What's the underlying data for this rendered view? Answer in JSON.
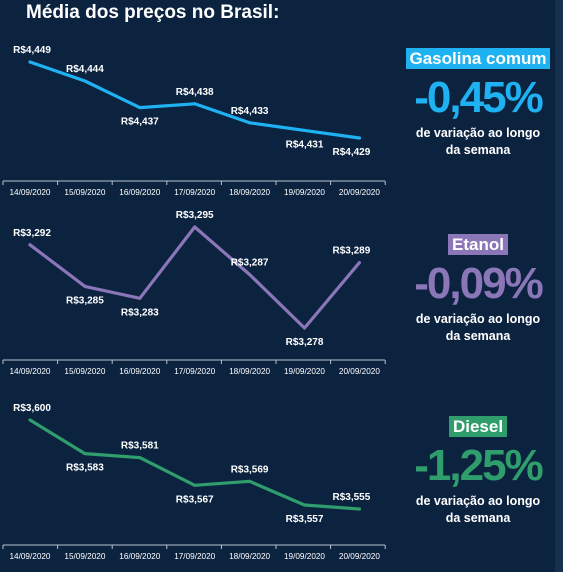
{
  "title": "Média dos preços no Brasil:",
  "description_line1": "de variação ao longo",
  "description_line2": "da semana",
  "chart_data": [
    {
      "type": "line",
      "name": "Gasolina comum",
      "color": "#1eb2f2",
      "change": "-0,45%",
      "x": [
        "14/09/2020",
        "15/09/2020",
        "16/09/2020",
        "17/09/2020",
        "18/09/2020",
        "19/09/2020",
        "20/09/2020"
      ],
      "values": [
        4.449,
        4.444,
        4.437,
        4.438,
        4.433,
        4.431,
        4.429
      ],
      "labels": [
        "R$4,449",
        "R$4,444",
        "R$4,437",
        "R$4,438",
        "R$4,433",
        "R$4,431",
        "R$4,429"
      ],
      "label_positions": [
        "above",
        "above",
        "below",
        "above",
        "above",
        "below",
        "below"
      ]
    },
    {
      "type": "line",
      "name": "Etanol",
      "color": "#8b76b8",
      "change": "-0,09%",
      "x": [
        "14/09/2020",
        "15/09/2020",
        "16/09/2020",
        "17/09/2020",
        "18/09/2020",
        "19/09/2020",
        "20/09/2020"
      ],
      "values": [
        3.292,
        3.285,
        3.283,
        3.295,
        3.287,
        3.278,
        3.289
      ],
      "labels": [
        "R$3,292",
        "R$3,285",
        "R$3,283",
        "R$3,295",
        "R$3,287",
        "R$3,278",
        "R$3,289"
      ],
      "label_positions": [
        "above",
        "below",
        "below",
        "above",
        "above",
        "below",
        "above"
      ]
    },
    {
      "type": "line",
      "name": "Diesel",
      "color": "#2f9d6c",
      "change": "-1,25%",
      "x": [
        "14/09/2020",
        "15/09/2020",
        "16/09/2020",
        "17/09/2020",
        "18/09/2020",
        "19/09/2020",
        "20/09/2020"
      ],
      "values": [
        3.6,
        3.583,
        3.581,
        3.567,
        3.569,
        3.557,
        3.555
      ],
      "labels": [
        "R$3,600",
        "R$3,583",
        "R$3,581",
        "R$3,567",
        "R$3,569",
        "R$3,557",
        "R$3,555"
      ],
      "label_positions": [
        "above",
        "below",
        "above",
        "below",
        "above",
        "below",
        "above"
      ]
    }
  ]
}
